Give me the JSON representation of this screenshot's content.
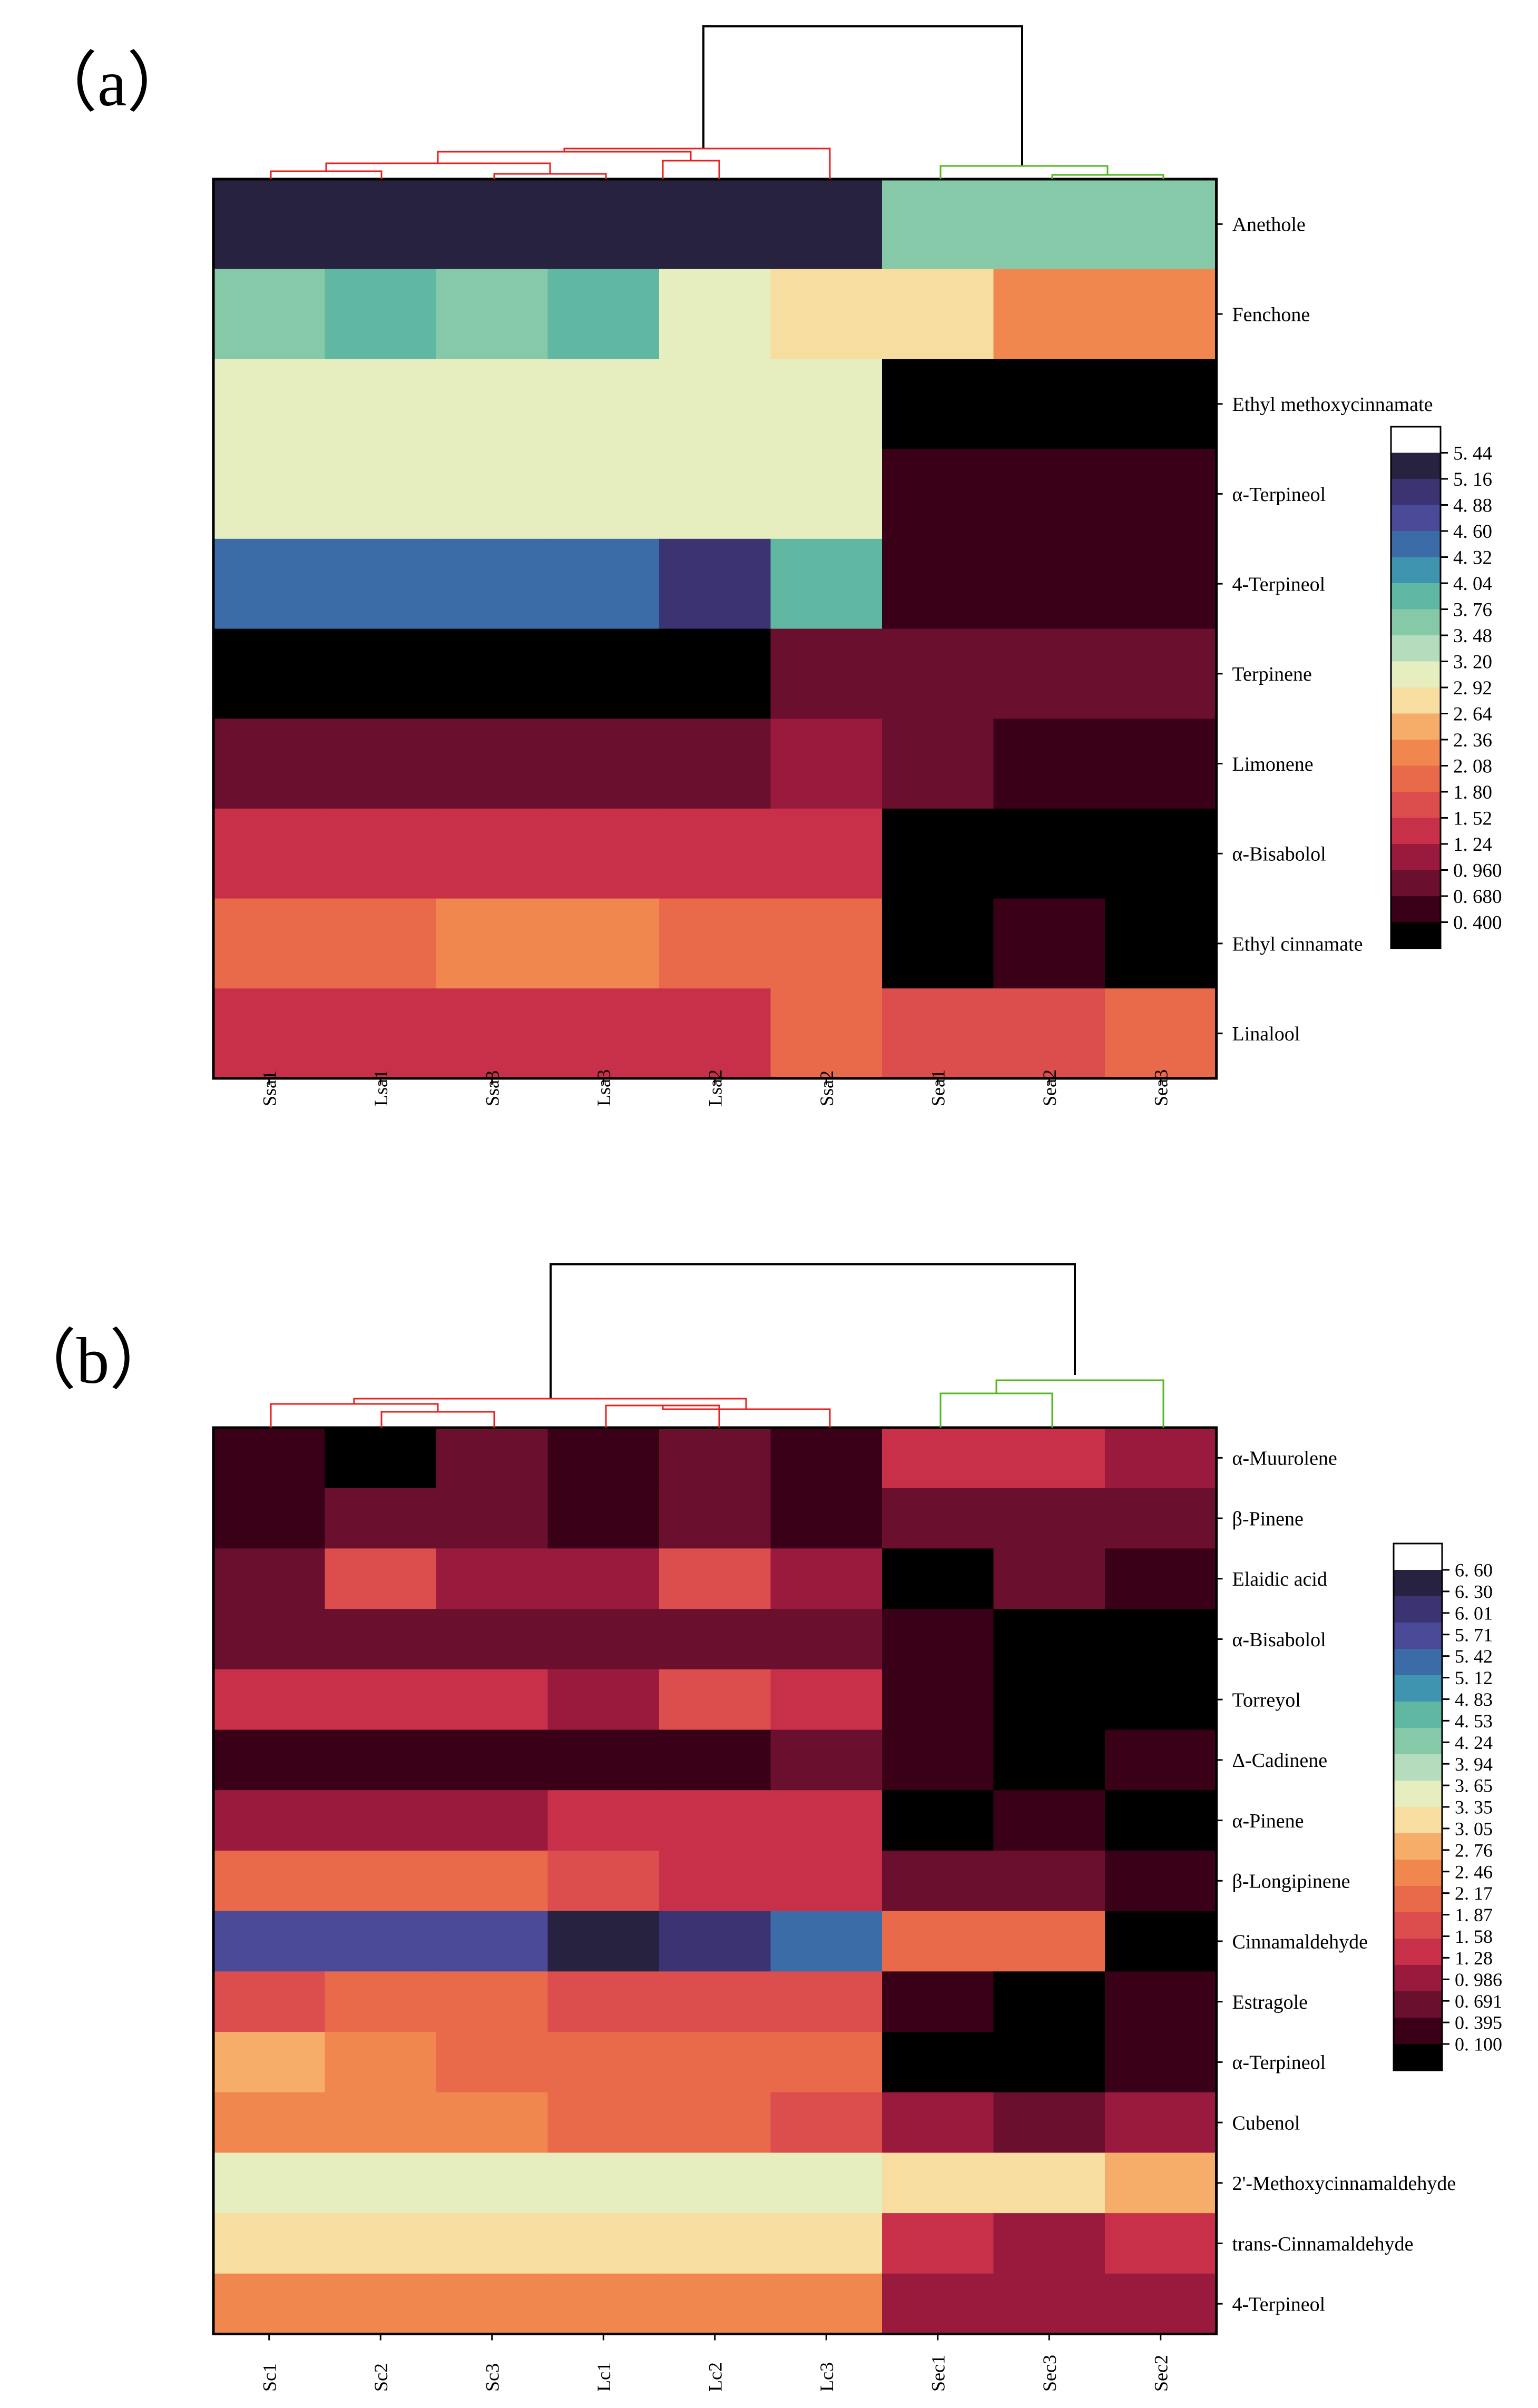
{
  "chart_data": [
    {
      "type": "heatmap",
      "panel_label": "（a）",
      "columns": [
        "Ssa1",
        "Lsa1",
        "Ssa3",
        "Lsa3",
        "Lsa2",
        "Ssa2",
        "Sea1",
        "Sea2",
        "Sea3"
      ],
      "rows": [
        "Anethole",
        "Fenchone",
        "Ethyl methoxycinnamate",
        "α-Terpineol",
        "4-Terpineol",
        "Terpinene",
        "Limonene",
        "α-Bisabolol",
        "Ethyl cinnamate",
        "Linalool"
      ],
      "values": [
        [
          5.3,
          5.3,
          5.3,
          5.3,
          5.3,
          5.3,
          3.6,
          3.6,
          3.6
        ],
        [
          3.6,
          3.9,
          3.6,
          3.9,
          3.3,
          3.0,
          2.8,
          2.5,
          2.5
        ],
        [
          3.3,
          3.3,
          3.3,
          3.3,
          3.3,
          3.3,
          0.55,
          0.55,
          0.55
        ],
        [
          3.3,
          3.3,
          3.3,
          3.3,
          3.3,
          3.3,
          0.82,
          0.82,
          0.82
        ],
        [
          4.45,
          4.45,
          4.45,
          4.45,
          5.0,
          3.9,
          0.82,
          0.82,
          0.82
        ],
        [
          0.55,
          0.55,
          0.55,
          0.55,
          0.55,
          1.1,
          1.1,
          1.1,
          1.1
        ],
        [
          1.1,
          1.1,
          1.1,
          1.1,
          1.1,
          1.4,
          1.1,
          0.82,
          0.82
        ],
        [
          1.65,
          1.65,
          1.65,
          1.65,
          1.65,
          1.65,
          0.55,
          0.55,
          0.55
        ],
        [
          2.2,
          2.2,
          2.5,
          2.5,
          2.2,
          2.2,
          0.55,
          0.82,
          0.55
        ],
        [
          1.65,
          1.65,
          1.65,
          1.65,
          1.65,
          2.2,
          1.95,
          1.95,
          2.2
        ]
      ],
      "colorbar_ticks": [
        "5. 44",
        "5. 16",
        "4. 88",
        "4. 60",
        "4. 32",
        "4. 04",
        "3. 76",
        "3. 48",
        "3. 20",
        "2. 92",
        "2. 64",
        "2. 36",
        "2. 08",
        "1. 80",
        "1. 52",
        "1. 24",
        "0. 960",
        "0. 680",
        "0. 400"
      ],
      "vmin": 0.4,
      "vmax": 5.44,
      "dendrogram": {
        "groups": [
          "red: Ssa1–Ssa2",
          "green: Sea1–Sea3"
        ]
      }
    },
    {
      "type": "heatmap",
      "panel_label": "（b）",
      "columns": [
        "Sc1",
        "Sc2",
        "Sc3",
        "Lc1",
        "Lc2",
        "Lc3",
        "Sec1",
        "Sec3",
        "Sec2"
      ],
      "rows": [
        "α-Muurolene",
        "β-Pinene",
        "Elaidic acid",
        "α-Bisabolol",
        "Torreyol",
        "Δ-Cadinene",
        "α-Pinene",
        "β-Longipinene",
        "Cinnamaldehyde",
        "Estragole",
        "α-Terpineol",
        "Cubenol",
        "2'-Methoxycinnamaldehyde",
        "trans-Cinnamaldehyde",
        "4-Terpineol"
      ],
      "values": [
        [
          0.55,
          0.25,
          0.85,
          0.55,
          0.85,
          0.55,
          1.7,
          1.7,
          1.45
        ],
        [
          0.55,
          0.85,
          1.1,
          0.55,
          0.85,
          0.55,
          1.1,
          1.1,
          0.85
        ],
        [
          1.1,
          1.85,
          1.45,
          1.45,
          1.85,
          1.45,
          0.25,
          0.85,
          0.55
        ],
        [
          1.1,
          1.1,
          1.1,
          1.1,
          1.1,
          1.1,
          0.55,
          0.25,
          0.25
        ],
        [
          1.7,
          1.7,
          1.7,
          1.45,
          2.0,
          1.7,
          0.55,
          0.25,
          0.25
        ],
        [
          0.55,
          0.55,
          0.55,
          0.55,
          0.55,
          0.85,
          0.55,
          0.25,
          0.55
        ],
        [
          1.45,
          1.45,
          1.45,
          1.7,
          1.7,
          1.7,
          0.25,
          0.55,
          0.25
        ],
        [
          2.3,
          2.3,
          2.3,
          2.0,
          1.7,
          1.7,
          0.85,
          0.85,
          0.55
        ],
        [
          5.85,
          5.85,
          5.85,
          6.45,
          6.15,
          5.55,
          2.3,
          2.3,
          0.25
        ],
        [
          2.0,
          2.3,
          2.3,
          2.0,
          2.0,
          2.0,
          0.55,
          0.25,
          0.55
        ],
        [
          2.9,
          2.6,
          2.3,
          2.3,
          2.3,
          2.3,
          0.25,
          0.25,
          0.55
        ],
        [
          2.6,
          2.6,
          2.6,
          2.3,
          2.3,
          2.0,
          1.45,
          1.1,
          1.45
        ],
        [
          3.8,
          3.8,
          3.8,
          3.8,
          3.8,
          3.8,
          3.2,
          3.5,
          2.9
        ],
        [
          3.5,
          3.5,
          3.5,
          3.2,
          3.2,
          3.2,
          1.7,
          1.45,
          1.7
        ],
        [
          2.6,
          2.6,
          2.6,
          2.6,
          2.6,
          2.6,
          1.45,
          1.45,
          1.45
        ]
      ],
      "colorbar_ticks": [
        "6. 60",
        "6. 30",
        "6. 01",
        "5. 71",
        "5. 42",
        "5. 12",
        "4. 83",
        "4. 53",
        "4. 24",
        "3. 94",
        "3. 65",
        "3. 35",
        "3. 05",
        "2. 76",
        "2. 46",
        "2. 17",
        "1. 87",
        "1. 58",
        "1. 28",
        "0. 986",
        "0. 691",
        "0. 395",
        "0. 100"
      ],
      "vmin": 0.1,
      "vmax": 6.6,
      "dendrogram": {
        "groups": [
          "red: Sc1–Lc3",
          "green: Sec1–Sec2"
        ]
      }
    }
  ],
  "colormap": [
    "#000000",
    "#3a0018",
    "#6a0f2e",
    "#9a1a3e",
    "#c8304a",
    "#dc4d4d",
    "#e96a4a",
    "#f0874f",
    "#f6ad6a",
    "#f7dda0",
    "#e6eec0",
    "#b5dcbc",
    "#86c9a8",
    "#60b8a2",
    "#3f95b0",
    "#3b6ca8",
    "#4a4a98",
    "#3c3373",
    "#27223f",
    "#ffffff"
  ],
  "dendrogram_colors": {
    "top": "#000000",
    "left": "#e8201e",
    "right": "#50b81c"
  }
}
